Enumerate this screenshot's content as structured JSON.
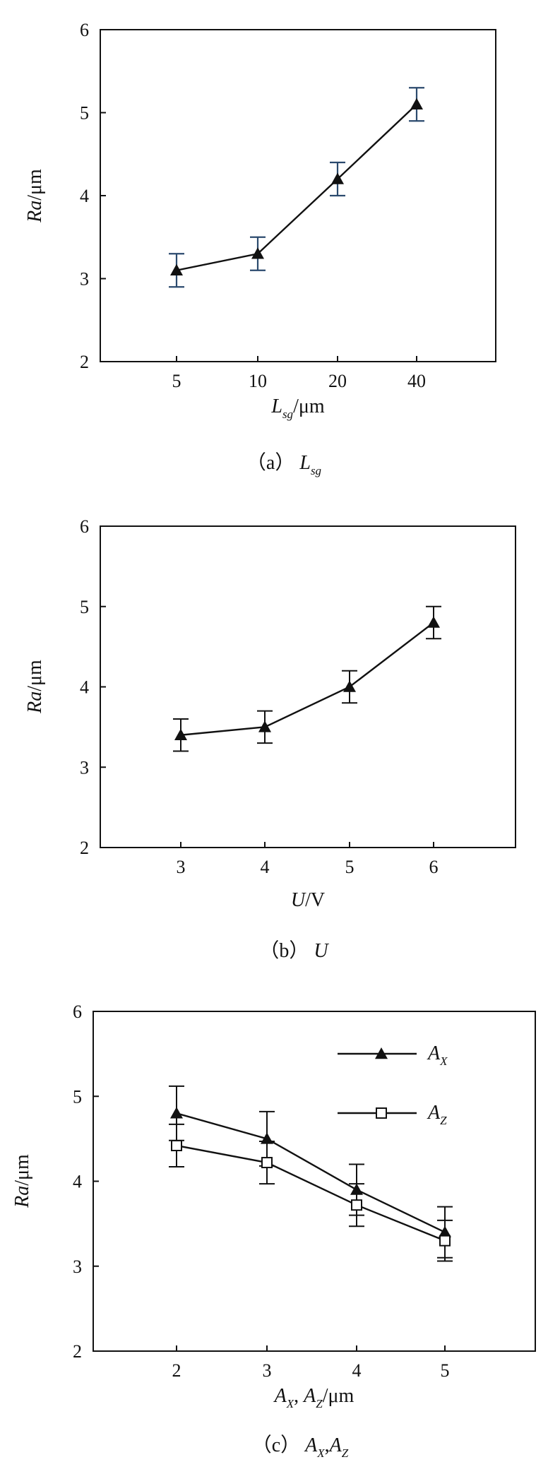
{
  "chart_data": [
    {
      "type": "line",
      "panel": "a",
      "caption": {
        "prefix": "（a）",
        "symbol": "L",
        "symbol_sub": "sg"
      },
      "xlabel": {
        "main": "L",
        "sub": "sg",
        "unit": "/μm"
      },
      "ylabel": {
        "main": "Ra",
        "unit": "/μm"
      },
      "categories": [
        "5",
        "10",
        "20",
        "40"
      ],
      "ylim": [
        2,
        6
      ],
      "yticks": [
        2,
        3,
        4,
        5,
        6
      ],
      "series": [
        {
          "marker": "triangle",
          "values": [
            3.1,
            3.3,
            4.2,
            5.1
          ],
          "err": [
            0.2,
            0.2,
            0.2,
            0.2
          ]
        }
      ]
    },
    {
      "type": "line",
      "panel": "b",
      "caption": {
        "prefix": "（b）",
        "symbol": "U",
        "symbol_sub": ""
      },
      "xlabel": {
        "main": "U",
        "sub": "",
        "unit": "/V"
      },
      "ylabel": {
        "main": "Ra",
        "unit": "/μm"
      },
      "categories": [
        "3",
        "4",
        "5",
        "6"
      ],
      "ylim": [
        2,
        6
      ],
      "yticks": [
        2,
        3,
        4,
        5,
        6
      ],
      "series": [
        {
          "marker": "triangle",
          "values": [
            3.4,
            3.5,
            4.0,
            4.8
          ],
          "err": [
            0.2,
            0.2,
            0.2,
            0.2
          ]
        }
      ]
    },
    {
      "type": "line",
      "panel": "c",
      "caption": {
        "prefix": "（c）",
        "symbol": "A",
        "symbol_sub": "X",
        "symbol2": "A",
        "symbol2_sub": "Z"
      },
      "xlabel": {
        "main": "A",
        "sub": "X",
        "main2": "A",
        "sub2": "Z",
        "unit": "/μm"
      },
      "ylabel": {
        "main": "Ra",
        "unit": "/μm"
      },
      "categories": [
        "2",
        "3",
        "4",
        "5"
      ],
      "ylim": [
        2,
        6
      ],
      "yticks": [
        2,
        3,
        4,
        5,
        6
      ],
      "legend_position": "top-right",
      "series": [
        {
          "name": "A",
          "name_sub": "X",
          "marker": "triangle",
          "values": [
            4.8,
            4.5,
            3.9,
            3.4
          ],
          "err": [
            0.32,
            0.32,
            0.3,
            0.3
          ]
        },
        {
          "name": "A",
          "name_sub": "Z",
          "marker": "square",
          "values": [
            4.42,
            4.22,
            3.72,
            3.3
          ],
          "err": [
            0.25,
            0.25,
            0.25,
            0.24
          ]
        }
      ]
    }
  ]
}
